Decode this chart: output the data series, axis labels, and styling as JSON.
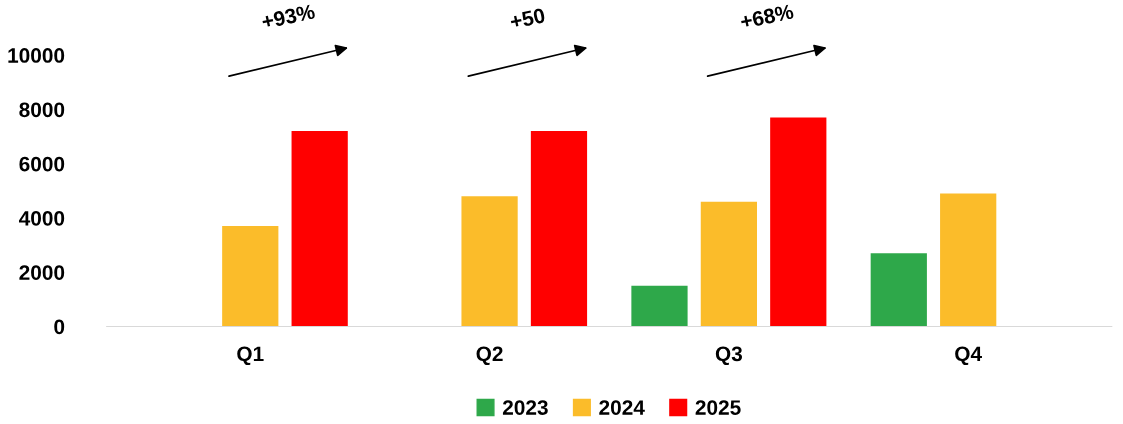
{
  "chart_data": {
    "type": "bar",
    "categories": [
      "Q1",
      "Q2",
      "Q3",
      "Q4"
    ],
    "series": [
      {
        "name": "2023",
        "color": "#2ea84a",
        "values": [
          null,
          null,
          1500,
          2700
        ]
      },
      {
        "name": "2024",
        "color": "#fbbc2a",
        "values": [
          3700,
          4800,
          4600,
          4900
        ]
      },
      {
        "name": "2025",
        "color": "#ff0000",
        "values": [
          7200,
          7200,
          7700,
          null
        ]
      }
    ],
    "ylim": [
      0,
      10000
    ],
    "yticks": [
      0,
      2000,
      4000,
      6000,
      8000,
      10000
    ],
    "annotations": [
      "+93%",
      "+50",
      "+68%"
    ],
    "grid": false,
    "legend": "bottom"
  }
}
